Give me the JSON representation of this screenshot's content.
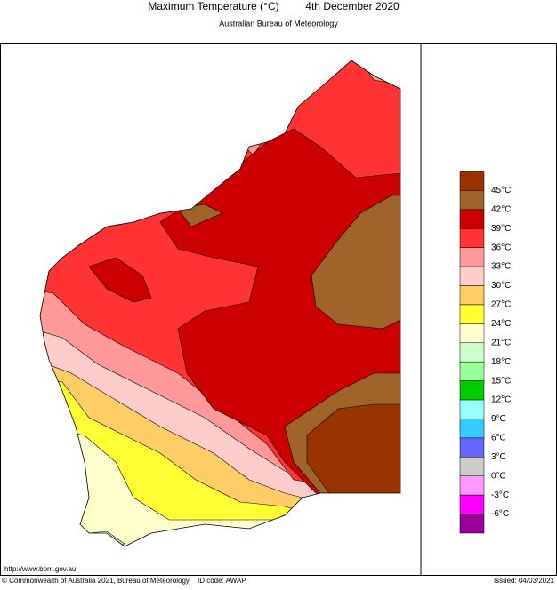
{
  "header": {
    "title": "Maximum Temperature (°C)",
    "date": "4th December 2020",
    "subtitle": "Australian Bureau of Meteorology"
  },
  "legend": {
    "colors": [
      "#993300",
      "#a0642b",
      "#cc0000",
      "#ff3333",
      "#ff9999",
      "#ffcccc",
      "#ffcc66",
      "#ffff33",
      "#ffffcc",
      "#ccffcc",
      "#99ff99",
      "#00cc00",
      "#99ffff",
      "#33ccff",
      "#6666ff",
      "#cccccc",
      "#ff99ff",
      "#ff00ff",
      "#990099"
    ],
    "labels": [
      "45°C",
      "42°C",
      "39°C",
      "36°C",
      "33°C",
      "30°C",
      "27°C",
      "24°C",
      "21°C",
      "18°C",
      "15°C",
      "12°C",
      "9°C",
      "6°C",
      "3°C",
      "0°C",
      "-3°C",
      "-6°C"
    ]
  },
  "footer": {
    "url": "http://www.bom.gov.au",
    "copyright": "© Commonwealth of Australia 2021, Bureau of Meteorology",
    "id_code": "ID code: AWAP",
    "issued": "Issued: 04/03/2021"
  }
}
